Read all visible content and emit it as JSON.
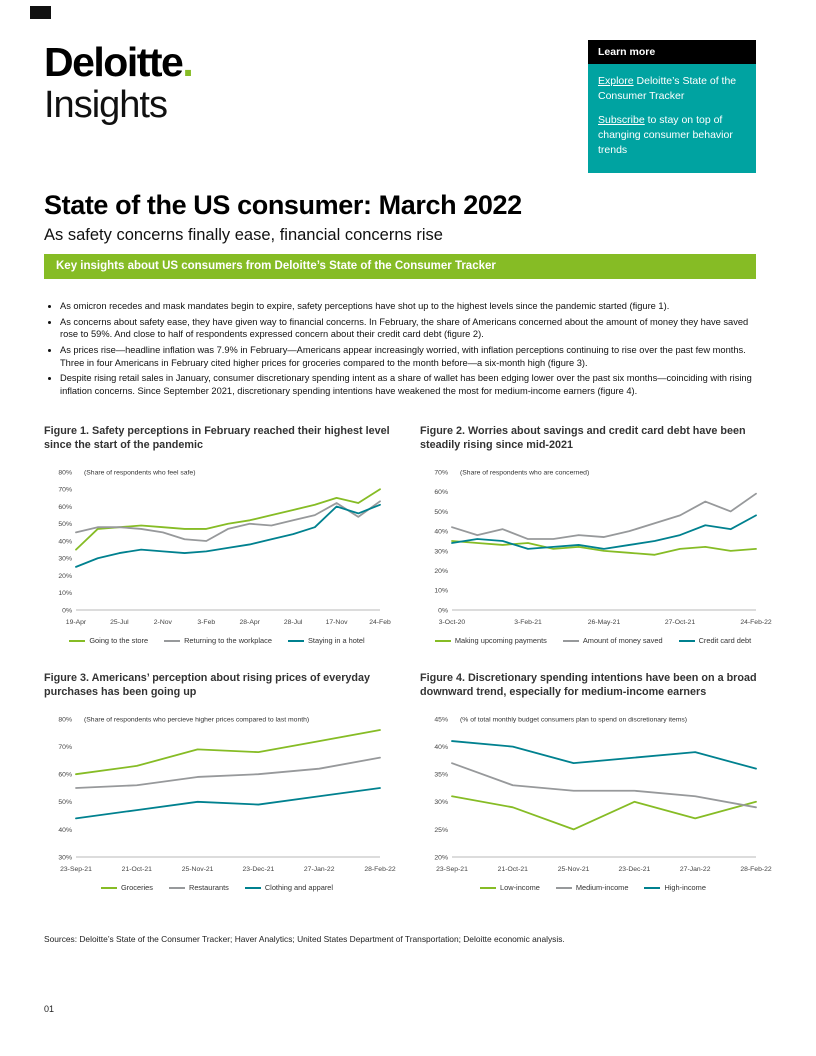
{
  "page": {
    "number": "01"
  },
  "logo": {
    "line1": "Deloitte",
    "dot": ".",
    "line2": "Insights"
  },
  "learn_more": {
    "header": "Learn more",
    "links": [
      {
        "link": "Explore",
        "rest": " Deloitte’s State of the Consumer Tracker"
      },
      {
        "link": "Subscribe",
        "rest": " to stay on top of changing consumer behavior trends"
      }
    ]
  },
  "title": "State of the US consumer: March 2022",
  "subtitle": "As safety concerns finally ease, financial concerns rise",
  "banner": "Key insights about US consumers from Deloitte’s State of the Consumer Tracker",
  "bullets": [
    "As omicron recedes and mask mandates begin to expire, safety perceptions have shot up to the highest levels since the pandemic started (figure 1).",
    "As concerns about safety ease, they have given way to financial concerns. In February, the share of Americans concerned about the amount of money they have saved rose to 59%. And close to half of respondents expressed concern about their credit card debt (figure 2).",
    "As prices rise—headline inflation was 7.9% in February—Americans appear increasingly worried, with inflation perceptions continuing to rise over the past few months. Three in four Americans in February cited higher prices for groceries compared to the month before—a six-month high (figure 3).",
    "Despite rising retail sales in January, consumer discretionary spending intent as a share of wallet has been edging lower over the past six months—coinciding with rising inflation concerns. Since September 2021, discretionary spending intentions have weakened the most for medium-income earners (figure 4)."
  ],
  "sources": "Sources: Deloitte’s State of the Consumer Tracker; Haver Analytics; United States Department of Transportation; Deloitte economic analysis.",
  "colors": {
    "green": "#86BC25",
    "gray": "#97999B",
    "teal": "#00818F"
  },
  "chart_data": [
    {
      "type": "line",
      "title": "Figure 1. Safety perceptions in February reached their highest level since the start of the pandemic",
      "note": "(Share of respondents who feel safe)",
      "ylim": [
        0,
        80
      ],
      "yticks": [
        0,
        10,
        20,
        30,
        40,
        50,
        60,
        70,
        80
      ],
      "xticks": [
        "19-Apr",
        "25-Jul",
        "2-Nov",
        "3-Feb",
        "28-Apr",
        "28-Jul",
        "17-Nov",
        "24-Feb"
      ],
      "xtick_idx": [
        0,
        2,
        4,
        6,
        8,
        10,
        12,
        14
      ],
      "legend_position": "bottom",
      "grid": false,
      "series": [
        {
          "name": "Going to the store",
          "color": "green",
          "values": [
            35,
            47,
            48,
            49,
            48,
            47,
            47,
            50,
            52,
            55,
            58,
            61,
            65,
            62,
            70
          ]
        },
        {
          "name": "Returning to the workplace",
          "color": "gray",
          "values": [
            45,
            48,
            48,
            47,
            45,
            41,
            40,
            47,
            50,
            49,
            52,
            55,
            62,
            54,
            63
          ]
        },
        {
          "name": "Staying in a hotel",
          "color": "teal",
          "values": [
            25,
            30,
            33,
            35,
            34,
            33,
            34,
            36,
            38,
            41,
            44,
            48,
            60,
            56,
            61
          ]
        }
      ]
    },
    {
      "type": "line",
      "title": "Figure 2. Worries about savings and credit card debt have been steadily rising since mid-2021",
      "note": "(Share of respondents who are concerned)",
      "ylim": [
        0,
        70
      ],
      "yticks": [
        0,
        10,
        20,
        30,
        40,
        50,
        60,
        70
      ],
      "xticks": [
        "3-Oct-20",
        "3-Feb-21",
        "26-May-21",
        "27-Oct-21",
        "24-Feb-22"
      ],
      "xtick_idx": [
        0,
        3,
        6,
        9,
        12
      ],
      "legend_position": "bottom",
      "grid": false,
      "series": [
        {
          "name": "Making upcoming payments",
          "color": "green",
          "values": [
            35,
            34,
            33,
            34,
            31,
            32,
            30,
            29,
            28,
            31,
            32,
            30,
            31
          ]
        },
        {
          "name": "Amount of money saved",
          "color": "gray",
          "values": [
            42,
            38,
            41,
            36,
            36,
            38,
            37,
            40,
            44,
            48,
            55,
            50,
            59
          ]
        },
        {
          "name": "Credit card debt",
          "color": "teal",
          "values": [
            34,
            36,
            35,
            31,
            32,
            33,
            31,
            33,
            35,
            38,
            43,
            41,
            48
          ]
        }
      ]
    },
    {
      "type": "line",
      "title": "Figure 3. Americans’ perception about rising prices of everyday purchases has been going up",
      "note": "(Share of respondents who percieve higher prices compared to last month)",
      "ylim": [
        30,
        80
      ],
      "yticks": [
        30,
        40,
        50,
        60,
        70,
        80
      ],
      "xticks": [
        "23-Sep-21",
        "21-Oct-21",
        "25-Nov-21",
        "23-Dec-21",
        "27-Jan-22",
        "28-Feb-22"
      ],
      "legend_position": "bottom",
      "grid": false,
      "series": [
        {
          "name": "Groceries",
          "color": "green",
          "values": [
            60,
            63,
            69,
            68,
            72,
            76
          ]
        },
        {
          "name": "Restaurants",
          "color": "gray",
          "values": [
            55,
            56,
            59,
            60,
            62,
            66
          ]
        },
        {
          "name": "Clothing and apparel",
          "color": "teal",
          "values": [
            44,
            47,
            50,
            49,
            52,
            55
          ]
        }
      ]
    },
    {
      "type": "line",
      "title": "Figure 4. Discretionary spending intentions have been on a broad downward trend, especially for medium-income earners",
      "note": "(% of total monthly budget consumers plan to spend on discretionary items)",
      "ylim": [
        20,
        45
      ],
      "yticks": [
        20,
        25,
        30,
        35,
        40,
        45
      ],
      "xticks": [
        "23-Sep-21",
        "21-Oct-21",
        "25-Nov-21",
        "23-Dec-21",
        "27-Jan-22",
        "28-Feb-22"
      ],
      "legend_position": "bottom",
      "grid": false,
      "series": [
        {
          "name": "Low-income",
          "color": "green",
          "values": [
            31,
            29,
            25,
            30,
            27,
            30
          ]
        },
        {
          "name": "Medium-income",
          "color": "gray",
          "values": [
            37,
            33,
            32,
            32,
            31,
            29
          ]
        },
        {
          "name": "High-income",
          "color": "teal",
          "values": [
            41,
            40,
            37,
            38,
            39,
            36
          ]
        }
      ]
    }
  ]
}
